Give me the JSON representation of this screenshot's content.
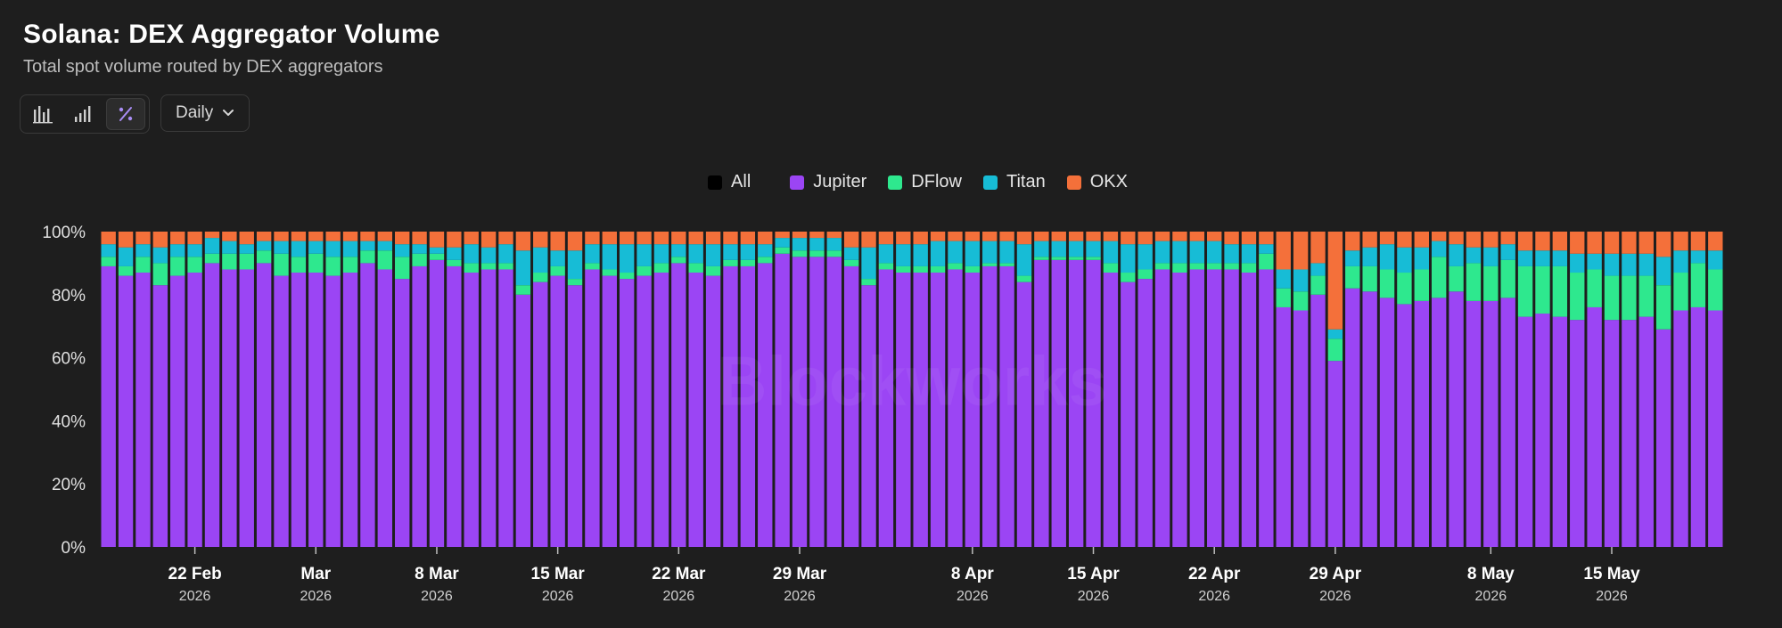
{
  "header": {
    "title": "Solana: DEX Aggregator Volume",
    "subtitle": "Total spot volume routed by DEX aggregators"
  },
  "toolbar": {
    "chart_types": [
      {
        "icon": "stacked-bar-chart-icon",
        "active": false
      },
      {
        "icon": "bar-chart-icon",
        "active": false
      },
      {
        "icon": "percent-icon",
        "active": true
      }
    ],
    "interval_label": "Daily"
  },
  "watermark": "Blockworks",
  "colors": {
    "Jupiter": "#9b45f4",
    "DFlow": "#2ee88e",
    "Titan": "#17bcd6",
    "OKX": "#f4703a",
    "All": "#000000"
  },
  "chart_data": {
    "type": "bar",
    "stacked": true,
    "normalized": true,
    "y_ticks": [
      "0%",
      "20%",
      "40%",
      "60%",
      "80%",
      "100%"
    ],
    "ylim": [
      0,
      100
    ],
    "legend": [
      "All",
      "Jupiter",
      "DFlow",
      "Titan",
      "OKX"
    ],
    "legend_position": "top-center",
    "grid": false,
    "x_start": "2026-02-17",
    "x_ticks": [
      {
        "date": "2026-02-22",
        "label": "22 Feb",
        "sub": "2026"
      },
      {
        "date": "2026-03-01",
        "label": "Mar",
        "sub": "2026"
      },
      {
        "date": "2026-03-08",
        "label": "8 Mar",
        "sub": "2026"
      },
      {
        "date": "2026-03-15",
        "label": "15 Mar",
        "sub": "2026"
      },
      {
        "date": "2026-03-22",
        "label": "22 Mar",
        "sub": "2026"
      },
      {
        "date": "2026-03-29",
        "label": "29 Mar",
        "sub": "2026"
      },
      {
        "date": "2026-04-08",
        "label": "8 Apr",
        "sub": "2026"
      },
      {
        "date": "2026-04-15",
        "label": "15 Apr",
        "sub": "2026"
      },
      {
        "date": "2026-04-22",
        "label": "22 Apr",
        "sub": "2026"
      },
      {
        "date": "2026-04-29",
        "label": "29 Apr",
        "sub": "2026"
      },
      {
        "date": "2026-05-08",
        "label": "8 May",
        "sub": "2026"
      },
      {
        "date": "2026-05-15",
        "label": "15 May",
        "sub": "2026"
      }
    ],
    "series": [
      {
        "name": "Jupiter",
        "values": [
          89,
          86,
          87,
          83,
          86,
          87,
          90,
          88,
          88,
          90,
          86,
          87,
          87,
          86,
          87,
          90,
          88,
          85,
          89,
          91,
          89,
          87,
          88,
          88,
          80,
          84,
          86,
          83,
          88,
          86,
          85,
          86,
          87,
          90,
          87,
          86,
          89,
          89,
          90,
          93,
          92,
          92,
          92,
          89,
          83,
          88,
          87,
          87,
          87,
          88,
          87,
          89,
          89,
          84,
          91,
          91,
          91,
          91,
          87,
          84,
          85,
          88,
          87,
          88,
          88,
          88,
          87,
          88,
          76,
          75,
          80,
          59,
          82,
          81,
          79,
          77,
          78,
          79,
          81,
          78,
          78,
          79,
          73,
          74,
          73,
          72,
          76,
          72,
          72,
          73,
          69,
          75,
          76,
          75
        ]
      },
      {
        "name": "DFlow",
        "values": [
          3,
          3,
          5,
          7,
          6,
          5,
          3,
          5,
          5,
          4,
          7,
          5,
          6,
          6,
          5,
          4,
          6,
          7,
          4,
          2,
          2,
          3,
          2,
          2,
          3,
          3,
          3,
          2,
          2,
          2,
          2,
          3,
          3,
          2,
          3,
          3,
          2,
          2,
          2,
          2,
          2,
          2,
          2,
          2,
          2,
          2,
          2,
          2,
          2,
          2,
          2,
          1,
          1,
          2,
          1,
          1,
          1,
          1,
          3,
          3,
          3,
          2,
          3,
          2,
          2,
          2,
          3,
          5,
          6,
          6,
          6,
          7,
          7,
          8,
          9,
          10,
          10,
          13,
          8,
          12,
          11,
          12,
          16,
          15,
          16,
          15,
          12,
          14,
          14,
          13,
          14,
          12,
          14,
          13
        ]
      },
      {
        "name": "Titan",
        "values": [
          4,
          6,
          4,
          5,
          4,
          4,
          5,
          4,
          3,
          3,
          4,
          5,
          4,
          5,
          5,
          3,
          3,
          4,
          3,
          2,
          4,
          6,
          5,
          6,
          11,
          8,
          5,
          9,
          6,
          8,
          9,
          7,
          6,
          4,
          6,
          7,
          5,
          5,
          4,
          3,
          4,
          4,
          4,
          4,
          10,
          6,
          7,
          7,
          8,
          7,
          8,
          7,
          7,
          10,
          5,
          5,
          5,
          5,
          7,
          9,
          8,
          7,
          7,
          7,
          7,
          6,
          6,
          3,
          6,
          7,
          4,
          3,
          5,
          6,
          8,
          8,
          7,
          5,
          7,
          5,
          6,
          5,
          5,
          5,
          5,
          6,
          5,
          7,
          7,
          7,
          9,
          7,
          4,
          6
        ]
      },
      {
        "name": "OKX",
        "values": [
          4,
          5,
          4,
          5,
          4,
          4,
          2,
          3,
          4,
          3,
          3,
          3,
          3,
          3,
          3,
          3,
          3,
          4,
          4,
          5,
          5,
          4,
          5,
          4,
          6,
          5,
          6,
          6,
          4,
          4,
          4,
          4,
          4,
          4,
          4,
          4,
          4,
          4,
          4,
          2,
          2,
          2,
          2,
          5,
          5,
          4,
          4,
          4,
          3,
          3,
          3,
          3,
          3,
          4,
          3,
          3,
          3,
          3,
          3,
          4,
          4,
          3,
          3,
          3,
          3,
          4,
          4,
          4,
          12,
          12,
          10,
          31,
          6,
          5,
          4,
          5,
          5,
          3,
          4,
          5,
          5,
          4,
          6,
          6,
          6,
          7,
          7,
          7,
          7,
          7,
          8,
          6,
          6,
          6
        ]
      }
    ]
  }
}
